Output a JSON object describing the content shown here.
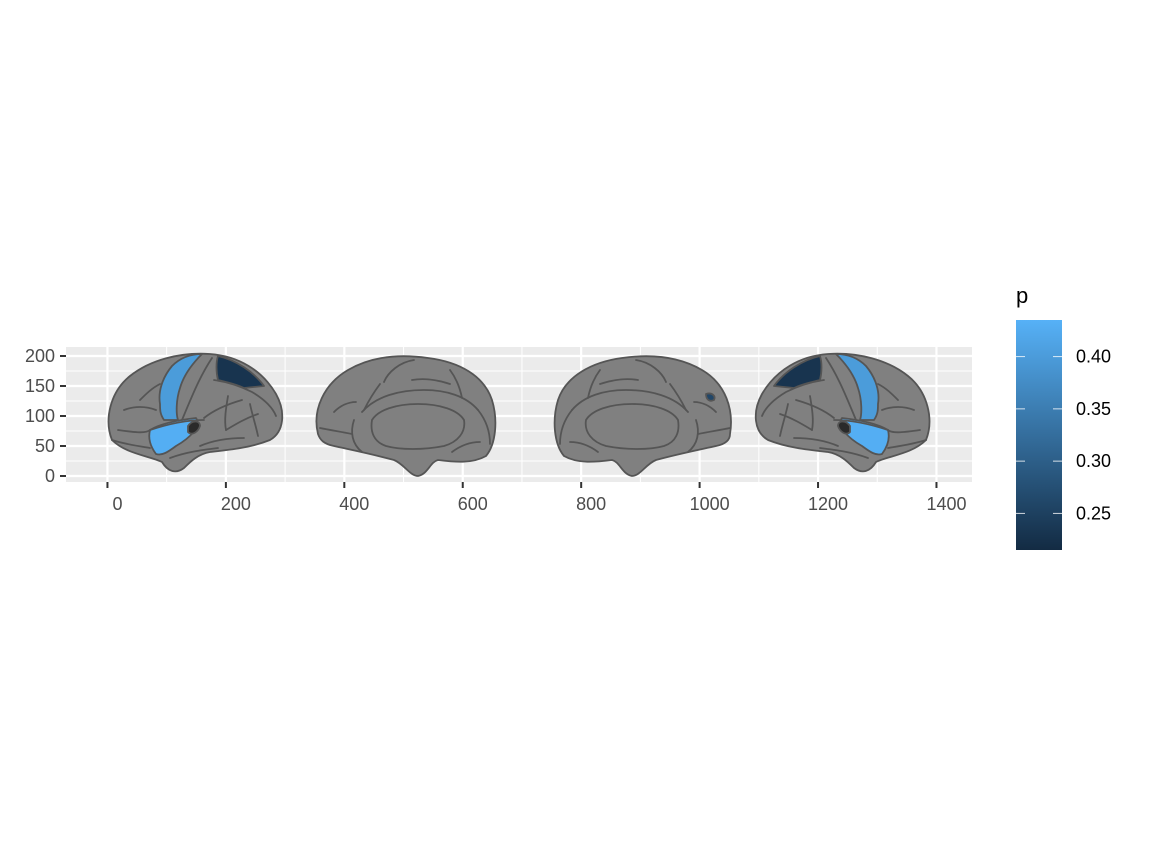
{
  "chart_data": {
    "type": "heatmap",
    "xlim": [
      -70,
      1460
    ],
    "ylim": [
      -10,
      215
    ],
    "x_ticks": [
      0,
      200,
      400,
      600,
      800,
      1000,
      1200,
      1400
    ],
    "y_ticks": [
      0,
      50,
      100,
      150,
      200
    ],
    "x_tick_labels": [
      "0",
      "200",
      "400",
      "600",
      "800",
      "1000",
      "1200",
      "1400"
    ],
    "y_tick_labels": [
      "0",
      "50",
      "100",
      "150",
      "200"
    ],
    "grid": true,
    "legend": {
      "title": "p",
      "placement": "right",
      "range": [
        0.215,
        0.435
      ],
      "breaks": [
        0.25,
        0.3,
        0.35,
        0.4
      ],
      "labels": [
        "0.25",
        "0.30",
        "0.35",
        "0.40"
      ],
      "color_low": "#132B43",
      "color_high": "#56B1F7"
    },
    "colors": {
      "panel_bg": "#EBEBEB",
      "grid": "#FFFFFF",
      "region_fill": "#808080",
      "region_outline": "#555555"
    },
    "highlighted_regions": [
      {
        "view": "left-lateral",
        "p": 0.4
      },
      {
        "view": "left-lateral",
        "p": 0.43
      },
      {
        "view": "left-lateral",
        "p": 0.23
      },
      {
        "view": "left-medial",
        "p": 0.26
      },
      {
        "view": "right-lateral",
        "p": 0.4
      },
      {
        "view": "right-lateral",
        "p": 0.43
      },
      {
        "view": "right-lateral",
        "p": 0.23
      }
    ]
  }
}
